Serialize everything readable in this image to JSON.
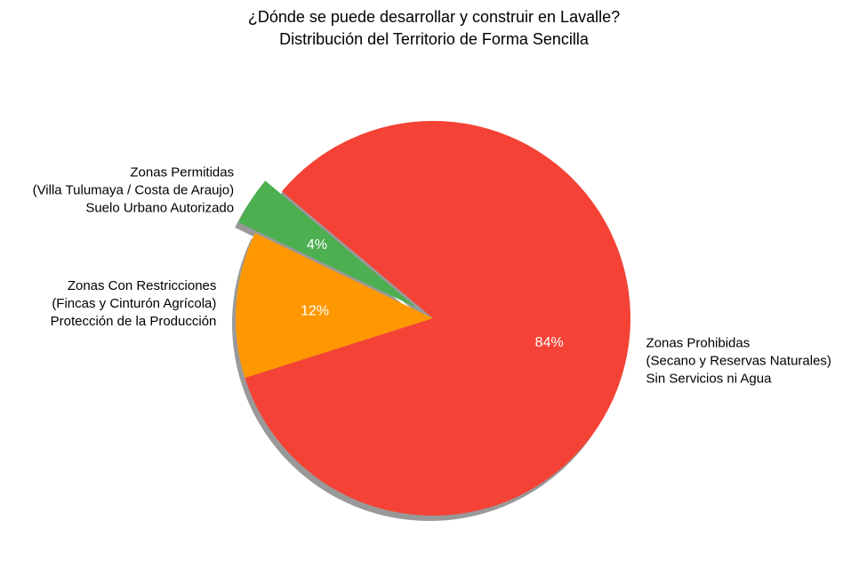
{
  "chart_data": {
    "type": "pie",
    "title_line1": "¿Dónde se puede desarrollar y construir en Lavalle?",
    "title_line2": "Distribución del Territorio de Forma Sencilla",
    "slices": [
      {
        "key": "permitidas",
        "value": 4,
        "pct_label": "4%",
        "color": "#4CAF50",
        "exploded": true,
        "label_lines": [
          "Zonas Permitidas",
          "(Villa Tulumaya / Costa de Araujo)",
          "Suelo Urbano Autorizado"
        ]
      },
      {
        "key": "restricciones",
        "value": 12,
        "pct_label": "12%",
        "color": "#FF9800",
        "exploded": false,
        "label_lines": [
          "Zonas Con Restricciones",
          "(Fincas y Cinturón Agrícola)",
          "Protección de la Producción"
        ]
      },
      {
        "key": "prohibidas",
        "value": 84,
        "pct_label": "84%",
        "color": "#F44336",
        "exploded": false,
        "label_lines": [
          "Zonas Prohibidas",
          "(Secano y Reservas Naturales)",
          "Sin Servicios ni Agua"
        ]
      }
    ],
    "start_angle_deg": 140,
    "direction": "counterclockwise",
    "shadow": true
  }
}
